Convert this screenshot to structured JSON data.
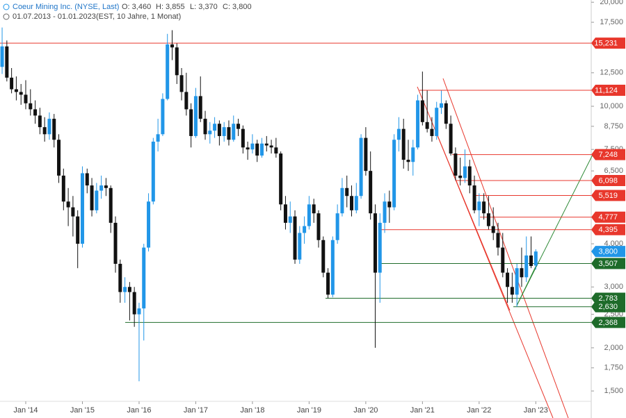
{
  "header": {
    "title": "Coeur Mining Inc. (NYSE, Last)",
    "open": "O: 3,460",
    "high": "H: 3,855",
    "low": "L: 3,370",
    "close": "C: 3,800",
    "range": "01.07.2013 - 01.01.2023",
    "info": "(EST, 10 Jahre, 1 Monat)"
  },
  "chart_data": {
    "type": "candlestick",
    "log_scale": true,
    "up_color": "#2196e8",
    "down_color": "#111111",
    "categories": [
      null,
      null,
      null,
      null,
      null,
      "Jan '14",
      null,
      null,
      null,
      null,
      null,
      null,
      null,
      null,
      null,
      null,
      null,
      "Jan '15",
      null,
      null,
      null,
      null,
      null,
      null,
      null,
      null,
      null,
      null,
      null,
      "Jan '16",
      null,
      null,
      null,
      null,
      null,
      null,
      null,
      null,
      null,
      null,
      null,
      "Jan '17",
      null,
      null,
      null,
      null,
      null,
      null,
      null,
      null,
      null,
      null,
      null,
      "Jan '18",
      null,
      null,
      null,
      null,
      null,
      null,
      null,
      null,
      null,
      null,
      null,
      "Jan '19",
      null,
      null,
      null,
      null,
      null,
      null,
      null,
      null,
      null,
      null,
      null,
      "Jan '20",
      null,
      null,
      null,
      null,
      null,
      null,
      null,
      null,
      null,
      null,
      null,
      "Jan '21",
      null,
      null,
      null,
      null,
      null,
      null,
      null,
      null,
      null,
      null,
      null,
      "Jan '22",
      null,
      null,
      null,
      null,
      null,
      null,
      null,
      null,
      null,
      null,
      null,
      "Jan '23"
    ],
    "open": [
      13.0,
      14.9,
      12.1,
      11.2,
      11.0,
      10.8,
      10.2,
      9.8,
      9.4,
      8.7,
      8.3,
      9.2,
      8.0,
      6.3,
      5.3,
      5.1,
      4.8,
      4.0,
      6.4,
      5.9,
      5.0,
      5.7,
      5.9,
      5.8,
      4.6,
      3.5,
      2.9,
      3.0,
      2.9,
      2.5,
      2.6,
      3.9,
      5.3,
      7.9,
      8.3,
      10.5,
      15.1,
      14.8,
      12.3,
      11.0,
      9.8,
      8.2,
      10.7,
      9.2,
      8.3,
      8.5,
      8.9,
      8.2,
      8.7,
      8.0,
      8.9,
      8.6,
      7.6,
      7.5,
      7.8,
      7.2,
      7.8,
      7.7,
      7.6,
      7.3,
      5.2,
      4.6,
      4.8,
      3.6,
      4.3,
      4.5,
      5.2,
      4.9,
      4.1,
      3.3,
      2.85,
      4.1,
      4.9,
      5.8,
      5.5,
      5.0,
      5.5,
      8.1,
      6.5,
      4.9,
      3.3,
      4.6,
      5.3,
      5.1,
      8.0,
      8.6,
      7.0,
      6.9,
      7.6,
      10.4,
      9.0,
      8.6,
      8.2,
      9.9,
      10.2,
      8.9,
      7.3,
      6.3,
      6.2,
      6.7,
      5.9,
      5.0,
      5.3,
      4.9,
      4.5,
      4.3,
      3.9,
      3.3,
      3.0,
      2.85,
      3.4,
      3.2,
      3.7,
      3.46
    ],
    "high": [
      16.9,
      15.5,
      12.9,
      12.2,
      11.6,
      11.9,
      11.2,
      10.4,
      9.9,
      9.3,
      9.6,
      9.5,
      8.3,
      6.6,
      5.8,
      5.5,
      5.0,
      6.7,
      6.6,
      6.2,
      6.0,
      6.3,
      6.2,
      5.9,
      4.8,
      3.6,
      3.2,
      3.1,
      3.0,
      2.7,
      4.0,
      5.6,
      8.1,
      9.2,
      10.9,
      16.2,
      16.6,
      15.2,
      12.9,
      12.5,
      10.2,
      11.3,
      12.2,
      9.7,
      9.0,
      9.3,
      9.1,
      9.0,
      9.1,
      9.4,
      9.2,
      8.8,
      7.9,
      8.3,
      8.0,
      8.1,
      8.2,
      8.0,
      8.1,
      7.4,
      5.5,
      5.3,
      5.0,
      4.5,
      4.8,
      5.5,
      5.4,
      5.0,
      4.2,
      3.4,
      4.2,
      5.2,
      6.2,
      6.3,
      5.9,
      6.0,
      8.3,
      8.7,
      7.4,
      5.2,
      4.9,
      5.6,
      5.7,
      8.3,
      9.3,
      9.2,
      8.0,
      8.0,
      10.8,
      12.6,
      11.1,
      9.3,
      10.3,
      11.1,
      10.4,
      9.4,
      7.6,
      7.1,
      7.5,
      7.0,
      6.3,
      5.6,
      5.6,
      5.5,
      5.1,
      4.6,
      4.3,
      3.4,
      3.3,
      3.5,
      3.9,
      4.2,
      4.2,
      3.855
    ],
    "low": [
      12.4,
      11.8,
      10.9,
      10.4,
      10.1,
      9.8,
      9.4,
      8.9,
      8.3,
      7.9,
      8.0,
      7.6,
      6.0,
      5.0,
      4.5,
      4.2,
      3.4,
      3.9,
      5.6,
      4.8,
      4.9,
      5.4,
      5.5,
      4.3,
      3.3,
      2.7,
      2.7,
      2.4,
      2.3,
      1.6,
      2.1,
      3.8,
      5.2,
      7.4,
      8.2,
      10.4,
      13.6,
      11.6,
      10.4,
      9.4,
      7.6,
      8.1,
      9.0,
      8.0,
      7.8,
      8.1,
      7.7,
      7.9,
      7.7,
      7.9,
      8.2,
      7.3,
      7.0,
      7.3,
      6.9,
      7.1,
      7.4,
      7.3,
      7.1,
      5.0,
      4.4,
      4.3,
      3.5,
      3.5,
      4.0,
      4.4,
      4.6,
      3.9,
      3.2,
      2.78,
      2.8,
      4.0,
      4.8,
      5.1,
      4.8,
      4.9,
      5.4,
      6.3,
      4.7,
      2.0,
      2.7,
      4.3,
      4.6,
      5.0,
      7.4,
      6.6,
      6.5,
      6.3,
      7.5,
      8.8,
      8.4,
      7.9,
      8.0,
      9.5,
      8.6,
      7.2,
      6.1,
      5.9,
      6.0,
      5.6,
      4.9,
      4.5,
      4.7,
      4.4,
      4.1,
      3.7,
      3.2,
      2.7,
      2.7,
      2.63,
      3.0,
      3.1,
      3.4,
      3.37
    ],
    "close": [
      14.9,
      12.1,
      11.2,
      11.0,
      10.8,
      10.2,
      9.8,
      9.4,
      8.7,
      8.3,
      9.2,
      8.0,
      6.3,
      5.3,
      5.1,
      4.8,
      4.0,
      6.4,
      5.9,
      5.0,
      5.7,
      5.9,
      5.8,
      4.6,
      3.5,
      2.9,
      3.0,
      2.9,
      2.5,
      2.6,
      3.9,
      5.3,
      7.9,
      8.3,
      10.5,
      15.1,
      14.8,
      12.3,
      11.0,
      9.8,
      8.2,
      10.7,
      9.2,
      8.3,
      8.5,
      8.9,
      8.2,
      8.7,
      8.0,
      8.9,
      8.6,
      7.6,
      7.5,
      7.8,
      7.2,
      7.8,
      7.7,
      7.6,
      7.3,
      5.2,
      4.6,
      4.8,
      3.6,
      4.3,
      4.5,
      5.2,
      4.9,
      4.1,
      3.3,
      2.85,
      4.1,
      4.9,
      5.8,
      5.5,
      5.0,
      5.5,
      8.1,
      6.5,
      4.9,
      3.3,
      4.6,
      5.3,
      5.1,
      8.0,
      8.6,
      7.0,
      6.9,
      7.6,
      10.4,
      9.0,
      8.6,
      8.2,
      9.9,
      10.2,
      8.9,
      7.3,
      6.3,
      6.2,
      6.7,
      5.9,
      5.0,
      5.3,
      4.9,
      4.5,
      4.3,
      3.9,
      3.3,
      3.0,
      2.85,
      3.4,
      3.2,
      3.7,
      3.45,
      3.8
    ],
    "ylim": [
      1.4,
      20.3
    ],
    "yticks": [
      {
        "value": 20,
        "label": "20,000"
      },
      {
        "value": 17.5,
        "label": "17,500"
      },
      {
        "value": 12.5,
        "label": "12,500"
      },
      {
        "value": 10,
        "label": "10,000"
      },
      {
        "value": 8.75,
        "label": "8,750"
      },
      {
        "value": 7.5,
        "label": "7,500"
      },
      {
        "value": 6.5,
        "label": "6,500"
      },
      {
        "value": 4,
        "label": "4,000"
      },
      {
        "value": 3,
        "label": "3,000"
      },
      {
        "value": 2.5,
        "label": "2,500"
      },
      {
        "value": 2,
        "label": "2,000"
      },
      {
        "value": 1.75,
        "label": "1,750"
      },
      {
        "value": 1.5,
        "label": "1,500"
      }
    ],
    "levels": [
      {
        "value": 15.231,
        "label": "15,231",
        "color": "#e8372c"
      },
      {
        "value": 11.124,
        "label": "11,124",
        "color": "#e8372c"
      },
      {
        "value": 7.248,
        "label": "7,248",
        "color": "#e8372c"
      },
      {
        "value": 6.098,
        "label": "6,098",
        "color": "#e8372c"
      },
      {
        "value": 5.519,
        "label": "5,519",
        "color": "#e8372c"
      },
      {
        "value": 4.777,
        "label": "4,777",
        "color": "#e8372c"
      },
      {
        "value": 4.395,
        "label": "4,395",
        "color": "#e8372c"
      },
      {
        "value": 3.8,
        "label": "3,800",
        "color": "#2196e8"
      },
      {
        "value": 3.507,
        "label": "3,507",
        "color": "#1e6b2a"
      },
      {
        "value": 2.783,
        "label": "2,783",
        "color": "#1e6b2a"
      },
      {
        "value": 2.63,
        "label": "2,630",
        "color": "#1e6b2a"
      },
      {
        "value": 2.368,
        "label": "2,368",
        "color": "#1e6b2a"
      }
    ]
  }
}
